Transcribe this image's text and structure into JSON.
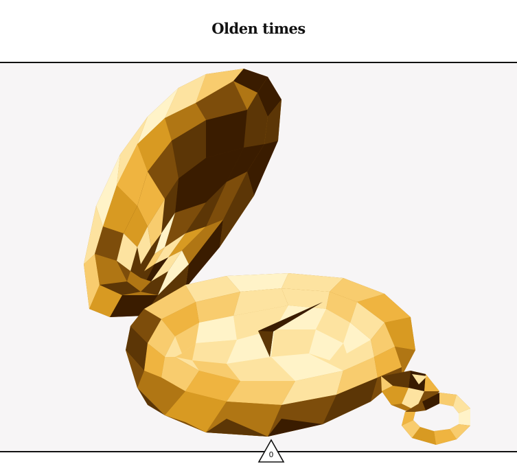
{
  "header": {
    "title": "Olden times"
  },
  "illustration": {
    "subject": "pocket-watch-icon",
    "palette": {
      "darkest": "#3a1c00",
      "dark": "#5c3606",
      "brown": "#7d4d0b",
      "bronze": "#b07614",
      "gold": "#d89a22",
      "amber": "#efb440",
      "light_gold": "#f8cc6e",
      "pale": "#fde3a0",
      "cream": "#fff3c8"
    }
  },
  "counter": {
    "value": "0",
    "icon": "triangle-icon"
  },
  "colors": {
    "background": "#f7f5f6",
    "header_bg": "#ffffff",
    "rule": "#111111"
  }
}
